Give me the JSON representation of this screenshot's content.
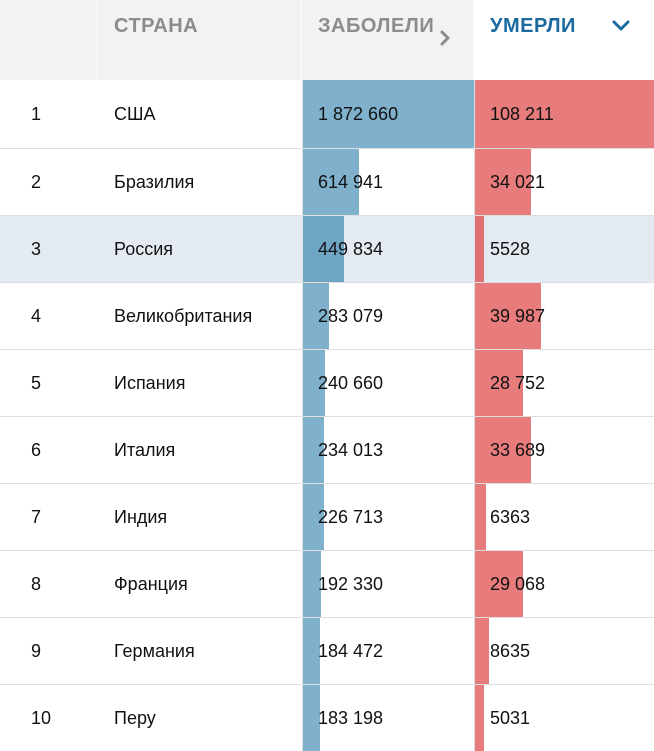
{
  "header": {
    "rank": "",
    "country": "СТРАНА",
    "cases": "ЗАБОЛЕЛИ",
    "deaths": "УМЕРЛИ",
    "cases_icon": "chevron-right-icon",
    "deaths_icon": "chevron-down-icon"
  },
  "colors": {
    "cases_bar": "#7fb1cc",
    "deaths_bar": "#e87c7c",
    "header_bg": "#f2f2f2",
    "highlight_row": "#e4eaf1",
    "active_header": "#1a6aa0"
  },
  "highlighted_row": 3,
  "chart_data": {
    "type": "table",
    "columns": [
      "",
      "СТРАНА",
      "ЗАБОЛЕЛИ",
      "УМЕРЛИ"
    ],
    "sorted_by": "УМЕРЛИ",
    "rows": [
      {
        "rank": "1",
        "country": "США",
        "cases": "1 872 660",
        "deaths": "108 211",
        "cases_value": 1872660,
        "deaths_value": 108211
      },
      {
        "rank": "2",
        "country": "Бразилия",
        "cases": "614 941",
        "deaths": "34 021",
        "cases_value": 614941,
        "deaths_value": 34021
      },
      {
        "rank": "3",
        "country": "Россия",
        "cases": "449 834",
        "deaths": "5528",
        "cases_value": 449834,
        "deaths_value": 5528
      },
      {
        "rank": "4",
        "country": "Великобритания",
        "cases": "283 079",
        "deaths": "39 987",
        "cases_value": 283079,
        "deaths_value": 39987
      },
      {
        "rank": "5",
        "country": "Испания",
        "cases": "240 660",
        "deaths": "28 752",
        "cases_value": 240660,
        "deaths_value": 28752
      },
      {
        "rank": "6",
        "country": "Италия",
        "cases": "234 013",
        "deaths": "33 689",
        "cases_value": 234013,
        "deaths_value": 33689
      },
      {
        "rank": "7",
        "country": "Индия",
        "cases": "226 713",
        "deaths": "6363",
        "cases_value": 226713,
        "deaths_value": 6363
      },
      {
        "rank": "8",
        "country": "Франция",
        "cases": "192 330",
        "deaths": "29 068",
        "cases_value": 192330,
        "deaths_value": 29068
      },
      {
        "rank": "9",
        "country": "Германия",
        "cases": "184 472",
        "deaths": "8635",
        "cases_value": 184472,
        "deaths_value": 8635
      },
      {
        "rank": "10",
        "country": "Перу",
        "cases": "183 198",
        "deaths": "5031",
        "cases_value": 183198,
        "deaths_value": 5031
      }
    ]
  }
}
